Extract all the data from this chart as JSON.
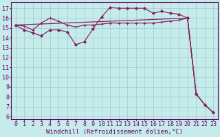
{
  "title": "",
  "xlabel": "Windchill (Refroidissement éolien,°C)",
  "ylabel": "",
  "bg_color": "#c5ecea",
  "grid_color": "#99ccca",
  "line_color": "#882266",
  "x_ticks": [
    0,
    1,
    2,
    3,
    4,
    5,
    6,
    7,
    8,
    9,
    10,
    11,
    12,
    13,
    14,
    15,
    16,
    17,
    18,
    19,
    20,
    21,
    22,
    23
  ],
  "y_ticks": [
    6,
    7,
    8,
    9,
    10,
    11,
    12,
    13,
    14,
    15,
    16,
    17
  ],
  "ylim": [
    5.7,
    17.6
  ],
  "xlim": [
    -0.5,
    23.5
  ],
  "diag_x": [
    0,
    20,
    21,
    22,
    23
  ],
  "diag_y": [
    15.3,
    16.0,
    8.3,
    7.2,
    6.4
  ],
  "line2_x": [
    0,
    1,
    2,
    3,
    4,
    5,
    6,
    7,
    8,
    9,
    10,
    11,
    12,
    13,
    14,
    15,
    16,
    17,
    18,
    19,
    20,
    21,
    22,
    23
  ],
  "line2_y": [
    15.3,
    15.2,
    14.8,
    15.5,
    16.0,
    15.7,
    15.3,
    15.1,
    15.3,
    15.3,
    15.4,
    15.5,
    15.5,
    15.5,
    15.5,
    15.5,
    15.5,
    15.6,
    15.7,
    15.8,
    16.0,
    8.3,
    7.2,
    6.4
  ],
  "line3_x": [
    0,
    1,
    2,
    3,
    4,
    5,
    6,
    7,
    8,
    9,
    10,
    11,
    12,
    13,
    14,
    15,
    16,
    17,
    18,
    19,
    20,
    21,
    22,
    23
  ],
  "line3_y": [
    15.3,
    14.8,
    14.5,
    14.2,
    14.8,
    14.8,
    14.6,
    13.3,
    13.6,
    14.9,
    16.1,
    17.1,
    17.0,
    17.0,
    17.0,
    17.0,
    16.5,
    16.7,
    16.5,
    16.4,
    16.0,
    8.3,
    7.2,
    6.4
  ],
  "xlabel_fontsize": 6.5,
  "tick_fontsize": 6.0
}
